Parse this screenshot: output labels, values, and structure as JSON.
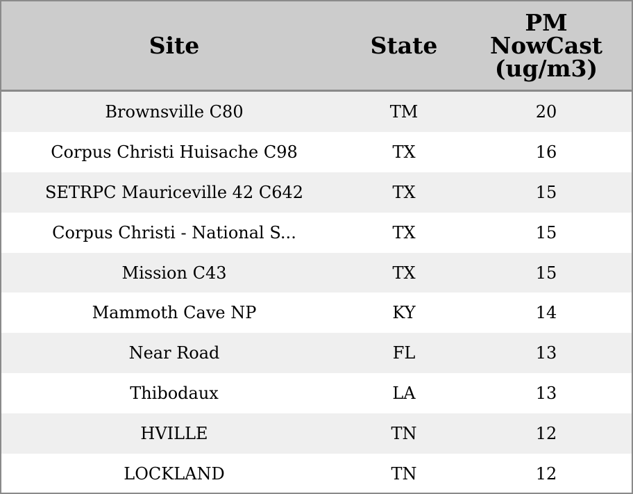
{
  "chart_data": {
    "type": "table",
    "columns": [
      "Site",
      "State",
      "PM NowCast (ug/m3)"
    ],
    "header": {
      "site": "Site",
      "state": "State",
      "pm_lines": [
        "PM",
        "NowCast",
        "(ug/m3)"
      ]
    },
    "rows": [
      {
        "site": "Brownsville C80",
        "state": "TM",
        "pm": "20"
      },
      {
        "site": "Corpus Christi Huisache C98",
        "state": "TX",
        "pm": "16"
      },
      {
        "site": "SETRPC Mauriceville 42 C642",
        "state": "TX",
        "pm": "15"
      },
      {
        "site": "Corpus Christi - National S...",
        "state": "TX",
        "pm": "15"
      },
      {
        "site": "Mission C43",
        "state": "TX",
        "pm": "15"
      },
      {
        "site": "Mammoth Cave NP",
        "state": "KY",
        "pm": "14"
      },
      {
        "site": "Near Road",
        "state": "FL",
        "pm": "13"
      },
      {
        "site": "Thibodaux",
        "state": "LA",
        "pm": "13"
      },
      {
        "site": "HVILLE",
        "state": "TN",
        "pm": "12"
      },
      {
        "site": "LOCKLAND",
        "state": "TN",
        "pm": "12"
      }
    ]
  },
  "colors": {
    "header_bg": "#cccccc",
    "stripe_bg": "#efefef",
    "border": "#8a8a8a"
  }
}
